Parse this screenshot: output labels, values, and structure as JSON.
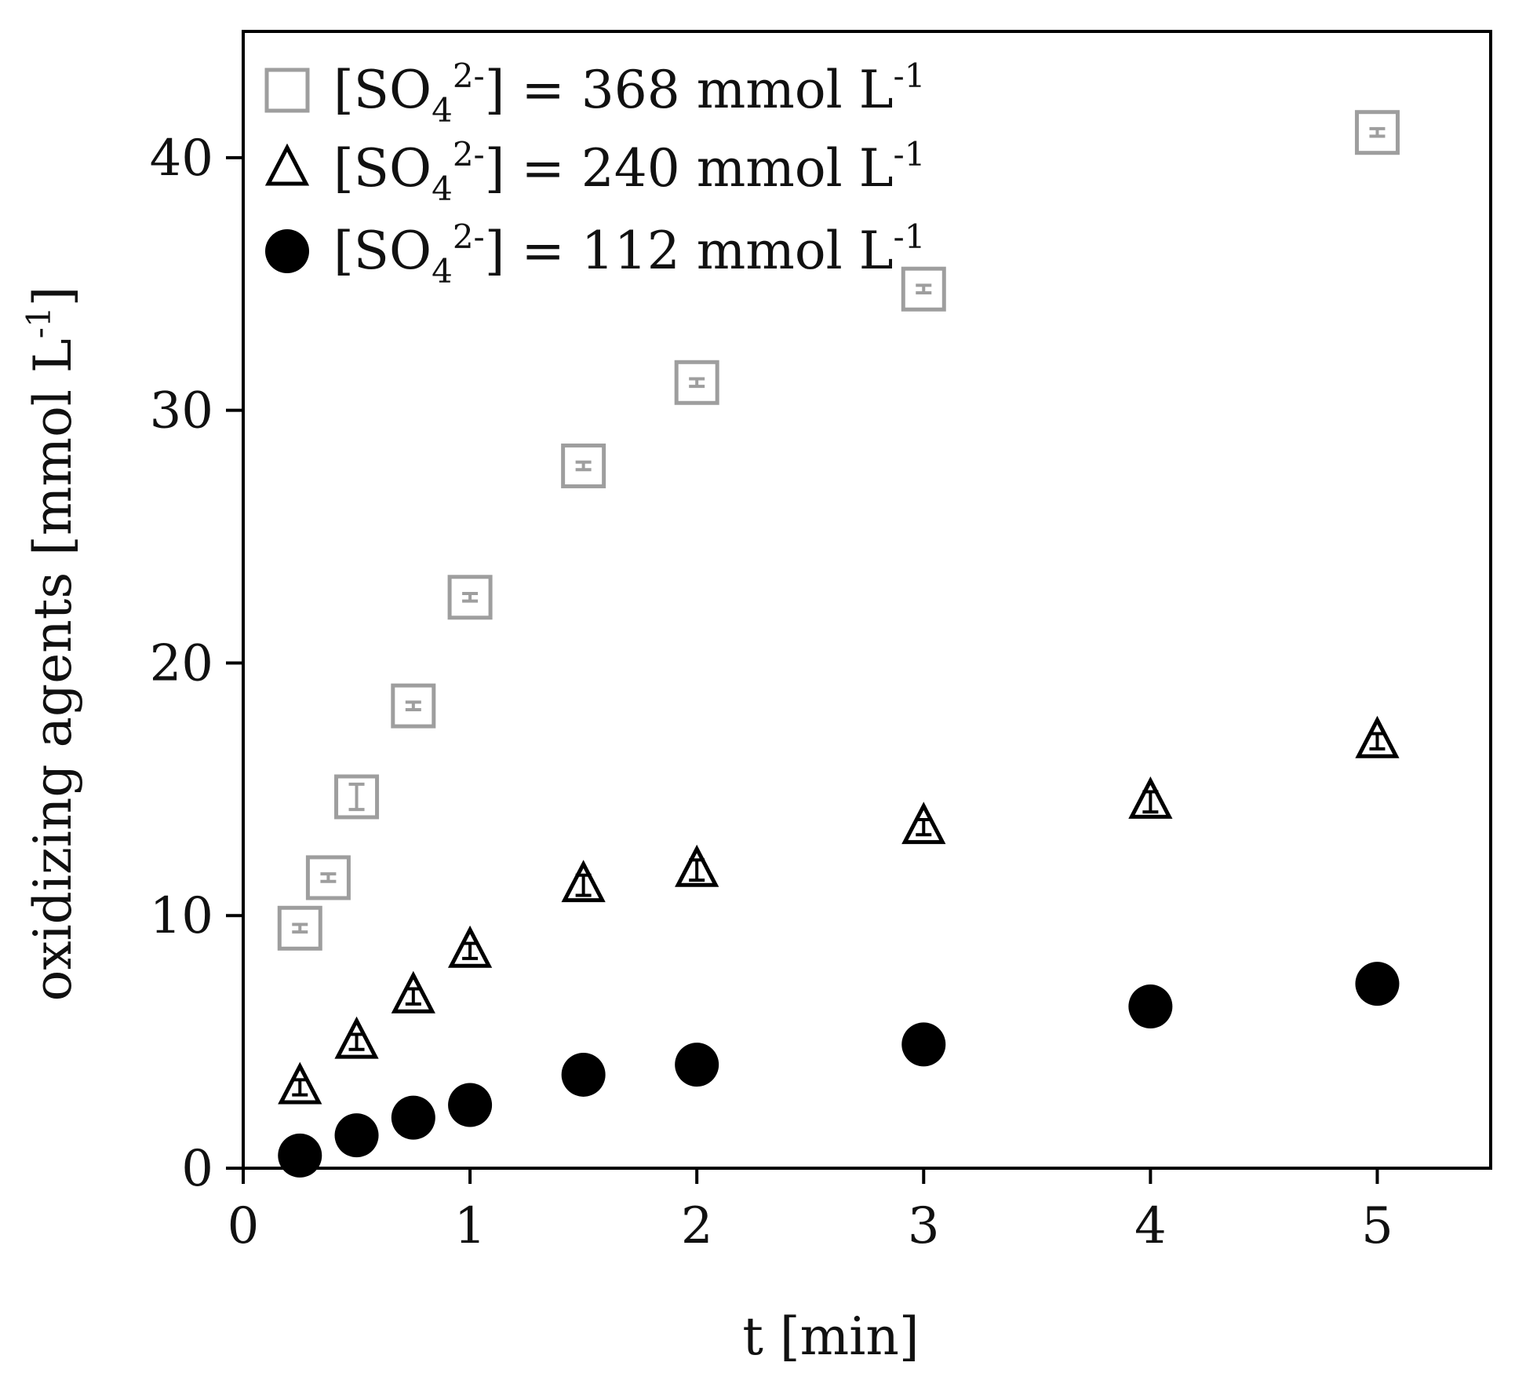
{
  "colors": {
    "square": "#9e9e9e",
    "triangle": "#000000",
    "circle": "#000000",
    "axis": "#000000"
  },
  "chart_data": {
    "type": "scatter",
    "title": "",
    "xlabel": "t [min]",
    "ylabel": "oxidizing agents [mmol L-1]",
    "ylabel_parts": {
      "main": "oxidizing agents [mmol L",
      "sup": "-1",
      "end": "]"
    },
    "xlim": [
      0,
      5.5
    ],
    "ylim": [
      0,
      45
    ],
    "xticks": [
      0,
      1,
      2,
      3,
      4,
      5
    ],
    "yticks": [
      0,
      10,
      20,
      30,
      40
    ],
    "grid": false,
    "legend_position": "top-left",
    "series": [
      {
        "name": "[SO42-] = 368 mmol L-1",
        "label": {
          "pre": "[SO",
          "sub": "4",
          "sup": "2-",
          "post": "] = 368 mmol L",
          "unit_sup": "-1"
        },
        "marker": "square",
        "color": "#9e9e9e",
        "x": [
          0.25,
          0.375,
          0.5,
          0.75,
          1.0,
          1.5,
          2.0,
          3.0,
          5.0
        ],
        "y": [
          9.5,
          11.5,
          14.7,
          18.3,
          22.6,
          27.8,
          31.1,
          34.8,
          41.0
        ],
        "yerr": [
          0.15,
          0.15,
          0.5,
          0.15,
          0.15,
          0.15,
          0.15,
          0.15,
          0.15
        ]
      },
      {
        "name": "[SO42-] = 240 mmol L-1",
        "label": {
          "pre": "[SO",
          "sub": "4",
          "sup": "2-",
          "post": "] = 240 mmol L",
          "unit_sup": "-1"
        },
        "marker": "triangle",
        "color": "#000000",
        "x": [
          0.25,
          0.5,
          0.75,
          1.0,
          1.5,
          2.0,
          3.0,
          4.0,
          5.0
        ],
        "y": [
          3.2,
          5.0,
          6.8,
          8.6,
          11.2,
          11.8,
          13.5,
          14.5,
          16.9
        ],
        "yerr": [
          0.3,
          0.3,
          0.3,
          0.3,
          0.4,
          0.4,
          0.3,
          0.4,
          0.3
        ]
      },
      {
        "name": "[SO42-] = 112 mmol L-1",
        "label": {
          "pre": "[SO",
          "sub": "4",
          "sup": "2-",
          "post": "] = 112 mmol L",
          "unit_sup": "-1"
        },
        "marker": "circle",
        "color": "#000000",
        "x": [
          0.25,
          0.5,
          0.75,
          1.0,
          1.5,
          2.0,
          3.0,
          4.0,
          5.0
        ],
        "y": [
          0.5,
          1.3,
          2.0,
          2.5,
          3.7,
          4.1,
          4.9,
          6.4,
          7.3
        ],
        "yerr": [
          0,
          0,
          0,
          0,
          0,
          0,
          0,
          0,
          0
        ]
      }
    ]
  }
}
